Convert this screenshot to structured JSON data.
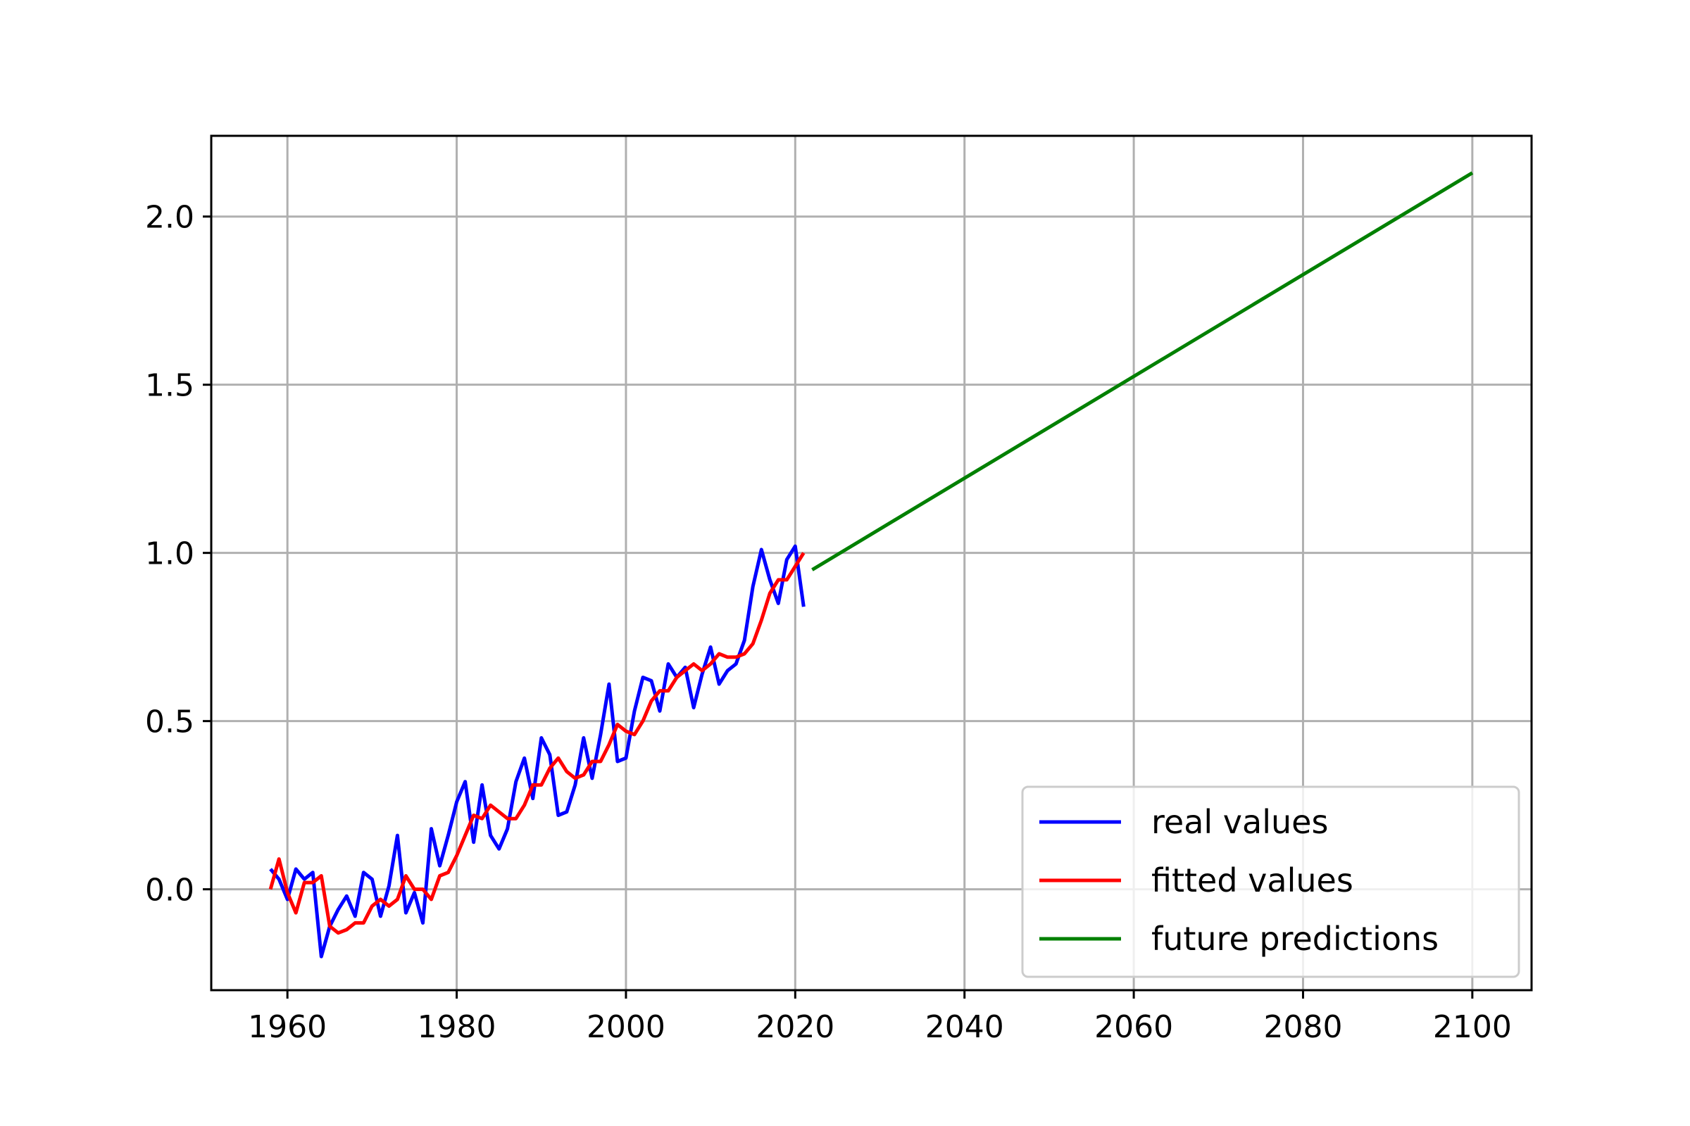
{
  "chart_data": {
    "type": "line",
    "title": "",
    "xlabel": "",
    "ylabel": "",
    "xlim": [
      1951,
      2107
    ],
    "ylim": [
      -0.3,
      2.24
    ],
    "grid": true,
    "legend_position": "lower-right",
    "x_ticks": [
      1960,
      1980,
      2000,
      2020,
      2040,
      2060,
      2080,
      2100
    ],
    "y_ticks": [
      0.0,
      0.5,
      1.0,
      1.5,
      2.0
    ],
    "x_tick_labels": [
      "1960",
      "1980",
      "2000",
      "2020",
      "2040",
      "2060",
      "2080",
      "2100"
    ],
    "y_tick_labels": [
      "0.0",
      "0.5",
      "1.0",
      "1.5",
      "2.0"
    ],
    "series": [
      {
        "name": "real values",
        "color": "#0000ff",
        "x": [
          1958,
          1959,
          1960,
          1961,
          1962,
          1963,
          1964,
          1965,
          1966,
          1967,
          1968,
          1969,
          1970,
          1971,
          1972,
          1973,
          1974,
          1975,
          1976,
          1977,
          1978,
          1979,
          1980,
          1981,
          1982,
          1983,
          1984,
          1985,
          1986,
          1987,
          1988,
          1989,
          1990,
          1991,
          1992,
          1993,
          1994,
          1995,
          1996,
          1997,
          1998,
          1999,
          2000,
          2001,
          2002,
          2003,
          2004,
          2005,
          2006,
          2007,
          2008,
          2009,
          2010,
          2011,
          2012,
          2013,
          2014,
          2015,
          2016,
          2017,
          2018,
          2019,
          2020,
          2021
        ],
        "y": [
          0.06,
          0.03,
          -0.03,
          0.06,
          0.03,
          0.05,
          -0.2,
          -0.11,
          -0.06,
          -0.02,
          -0.08,
          0.05,
          0.03,
          -0.08,
          0.01,
          0.16,
          -0.07,
          -0.01,
          -0.1,
          0.18,
          0.07,
          0.16,
          0.26,
          0.32,
          0.14,
          0.31,
          0.16,
          0.12,
          0.18,
          0.32,
          0.39,
          0.27,
          0.45,
          0.4,
          0.22,
          0.23,
          0.31,
          0.45,
          0.33,
          0.46,
          0.61,
          0.38,
          0.39,
          0.53,
          0.63,
          0.62,
          0.53,
          0.67,
          0.63,
          0.66,
          0.54,
          0.64,
          0.72,
          0.61,
          0.65,
          0.67,
          0.74,
          0.9,
          1.01,
          0.92,
          0.85,
          0.98,
          1.02,
          0.84
        ]
      },
      {
        "name": "fitted values",
        "color": "#ff0000",
        "x": [
          1958,
          1959,
          1960,
          1961,
          1962,
          1963,
          1964,
          1965,
          1966,
          1967,
          1968,
          1969,
          1970,
          1971,
          1972,
          1973,
          1974,
          1975,
          1976,
          1977,
          1978,
          1979,
          1980,
          1981,
          1982,
          1983,
          1984,
          1985,
          1986,
          1987,
          1988,
          1989,
          1990,
          1991,
          1992,
          1993,
          1994,
          1995,
          1996,
          1997,
          1998,
          1999,
          2000,
          2001,
          2002,
          2003,
          2004,
          2005,
          2006,
          2007,
          2008,
          2009,
          2010,
          2011,
          2012,
          2013,
          2014,
          2015,
          2016,
          2017,
          2018,
          2019,
          2020,
          2021
        ],
        "y": [
          0.0,
          0.09,
          -0.01,
          -0.07,
          0.02,
          0.02,
          0.04,
          -0.11,
          -0.13,
          -0.12,
          -0.1,
          -0.1,
          -0.05,
          -0.03,
          -0.05,
          -0.03,
          0.04,
          0.0,
          0.0,
          -0.03,
          0.04,
          0.05,
          0.1,
          0.16,
          0.22,
          0.21,
          0.25,
          0.23,
          0.21,
          0.21,
          0.25,
          0.31,
          0.31,
          0.36,
          0.39,
          0.35,
          0.33,
          0.34,
          0.38,
          0.38,
          0.43,
          0.49,
          0.47,
          0.46,
          0.5,
          0.56,
          0.59,
          0.59,
          0.63,
          0.65,
          0.67,
          0.65,
          0.67,
          0.7,
          0.69,
          0.69,
          0.7,
          0.73,
          0.8,
          0.88,
          0.92,
          0.92,
          0.96,
          1.0
        ]
      },
      {
        "name": "future predictions",
        "color": "#008000",
        "x": [
          2022,
          2100
        ],
        "y": [
          0.95,
          2.13
        ]
      }
    ]
  }
}
